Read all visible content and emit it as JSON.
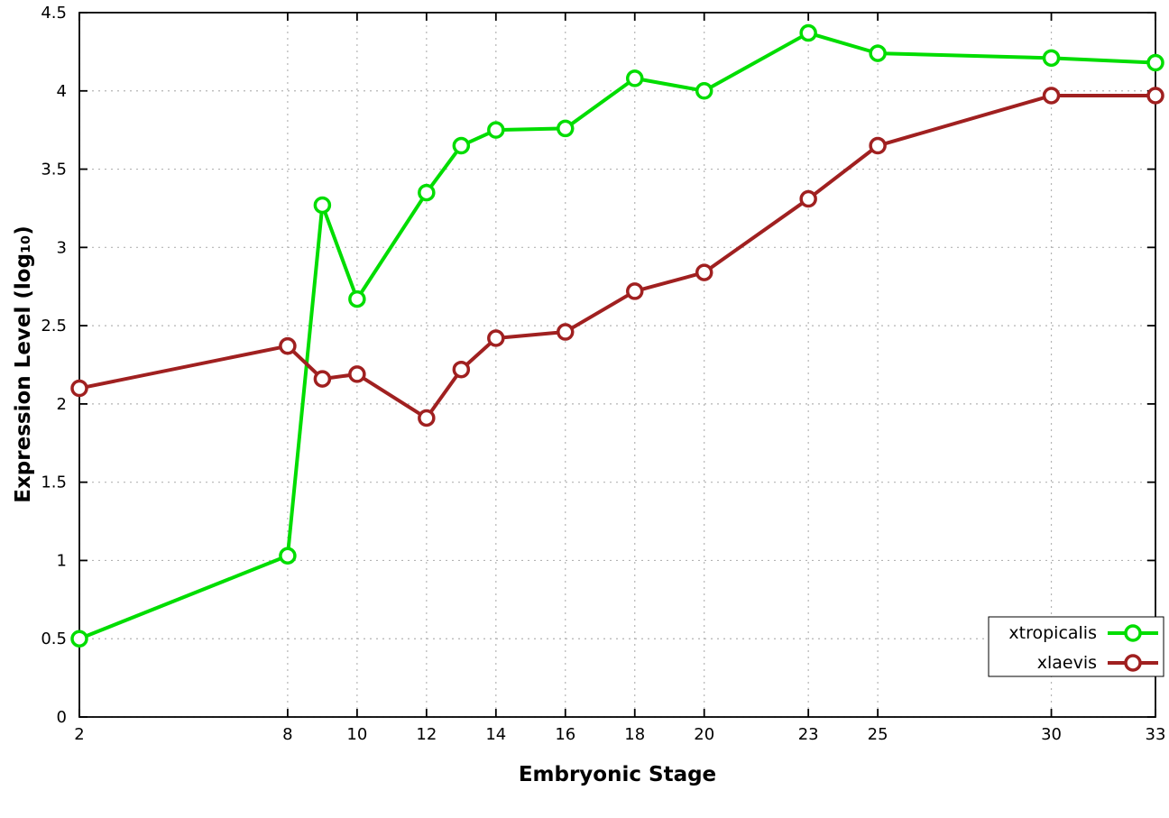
{
  "page": {
    "background_color": "#ffffff"
  },
  "chart_data": {
    "type": "line",
    "title": "",
    "xlabel": "Embryonic Stage",
    "ylabel": "Expression Level (log₁₀)",
    "x": [
      2,
      8,
      9,
      10,
      12,
      13,
      14,
      16,
      18,
      20,
      23,
      25,
      30,
      33
    ],
    "x_tick_labels": [
      "2",
      "8",
      "10",
      "12",
      "14",
      "16",
      "18",
      "20",
      "23",
      "25",
      "30",
      "33"
    ],
    "xlim": [
      2,
      33
    ],
    "y_ticks": [
      "0",
      "0.5",
      "1",
      "1.5",
      "2",
      "2.5",
      "3",
      "3.5",
      "4",
      "4.5"
    ],
    "ylim": [
      0,
      4.5
    ],
    "grid": true,
    "grid_style": "dotted",
    "legend_position": "bottom-right",
    "marker": "open-circle",
    "series": [
      {
        "name": "xtropicalis",
        "color": "#00dd00",
        "values": [
          0.5,
          1.03,
          3.27,
          2.67,
          3.35,
          3.65,
          3.75,
          3.76,
          4.08,
          4.0,
          4.37,
          4.24,
          4.21,
          4.18
        ]
      },
      {
        "name": "xlaevis",
        "color": "#a02020",
        "values": [
          2.1,
          2.37,
          2.16,
          2.19,
          1.91,
          2.22,
          2.42,
          2.46,
          2.72,
          2.84,
          3.31,
          3.65,
          3.97,
          3.97
        ]
      }
    ]
  }
}
